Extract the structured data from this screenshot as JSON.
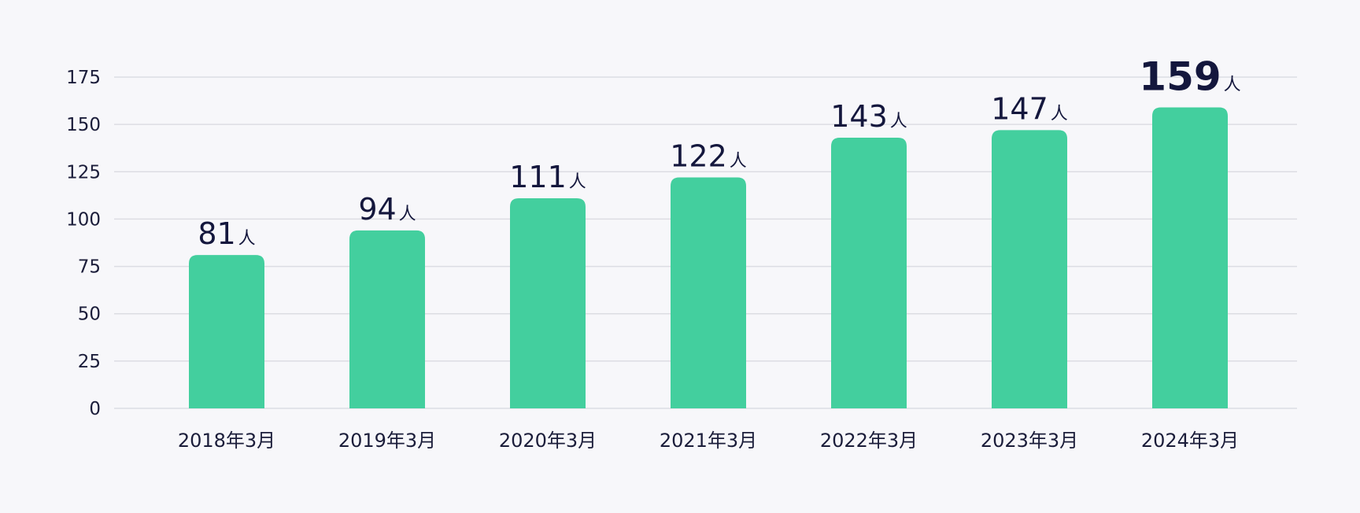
{
  "chart_data": {
    "type": "bar",
    "categories": [
      "2018年3月",
      "2019年3月",
      "2020年3月",
      "2021年3月",
      "2022年3月",
      "2023年3月",
      "2024年3月"
    ],
    "values": [
      81,
      94,
      111,
      122,
      143,
      147,
      159
    ],
    "unit": "人",
    "ylim": [
      0,
      175
    ],
    "yticks": [
      0,
      25,
      50,
      75,
      100,
      125,
      150,
      175
    ],
    "grid": true,
    "bar_color": "#43cf9e",
    "highlight_index": 6,
    "title": "",
    "xlabel": "",
    "ylabel": ""
  }
}
